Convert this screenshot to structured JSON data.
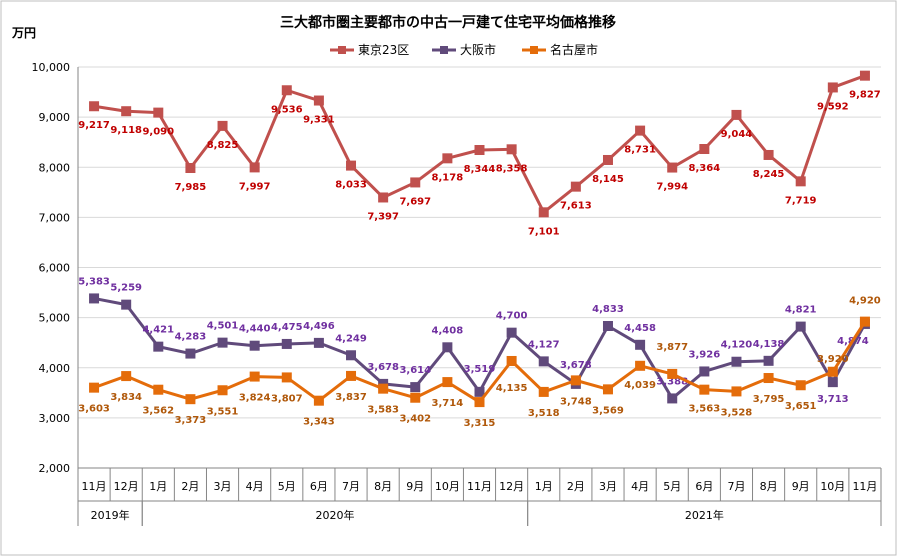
{
  "chart_data": {
    "type": "line",
    "title": "三大都市圏主要都市の中古一戸建て住宅平均価格推移",
    "ylabel": "万円",
    "ylim": [
      2000,
      10000
    ],
    "yticks": [
      "2,000",
      "3,000",
      "4,000",
      "5,000",
      "6,000",
      "7,000",
      "8,000",
      "9,000",
      "10,000"
    ],
    "ytick_values": [
      2000,
      3000,
      4000,
      5000,
      6000,
      7000,
      8000,
      9000,
      10000
    ],
    "categories": [
      "11月",
      "12月",
      "1月",
      "2月",
      "3月",
      "4月",
      "5月",
      "6月",
      "7月",
      "8月",
      "9月",
      "10月",
      "11月",
      "12月",
      "1月",
      "2月",
      "3月",
      "4月",
      "5月",
      "6月",
      "7月",
      "8月",
      "9月",
      "10月",
      "11月"
    ],
    "year_groups": [
      {
        "label": "2019年",
        "start": 0,
        "end": 1
      },
      {
        "label": "2020年",
        "start": 2,
        "end": 13
      },
      {
        "label": "2021年",
        "start": 14,
        "end": 24
      }
    ],
    "series": [
      {
        "name": "東京23区",
        "color": "#c0504d",
        "label_color": "#c00000",
        "marker": "square",
        "values": [
          9217,
          9118,
          9090,
          7985,
          8825,
          7997,
          9536,
          9331,
          8033,
          7397,
          7697,
          8178,
          8344,
          8358,
          7101,
          7613,
          8145,
          8731,
          7994,
          8364,
          9044,
          8245,
          7719,
          9592,
          9827
        ],
        "labels": [
          "9,217",
          "9,118",
          "9,090",
          "7,985",
          "8,825",
          "7,997",
          "9,536",
          "9,331",
          "8,033",
          "7,397",
          "7,697",
          "8,178",
          "8,344",
          "8,358",
          "7,101",
          "7,613",
          "8,145",
          "8,731",
          "7,994",
          "8,364",
          "9,044",
          "8,245",
          "7,719",
          "9,592",
          "9,827"
        ]
      },
      {
        "name": "大阪市",
        "color": "#604a7b",
        "label_color": "#7030a0",
        "marker": "square",
        "values": [
          5383,
          5259,
          4421,
          4283,
          4501,
          4440,
          4475,
          4496,
          4249,
          3678,
          3614,
          4408,
          3519,
          4700,
          4127,
          3678,
          4833,
          4458,
          3388,
          3926,
          4120,
          4138,
          4821,
          3713,
          4874
        ],
        "labels": [
          "5,383",
          "5,259",
          "4,421",
          "4,283",
          "4,501",
          "4,440",
          "4,475",
          "4,496",
          "4,249",
          "3,678",
          "3,614",
          "4,408",
          "3,519",
          "4,700",
          "4,127",
          "3,678",
          "4,833",
          "4,458",
          "3,388",
          "3,926",
          "4,120",
          "4,138",
          "4,821",
          "3,713",
          "4,874"
        ]
      },
      {
        "name": "名古屋市",
        "color": "#e46c0a",
        "label_color": "#b0580a",
        "marker": "square",
        "values": [
          3603,
          3834,
          3562,
          3373,
          3551,
          3824,
          3807,
          3343,
          3837,
          3583,
          3402,
          3714,
          3315,
          4135,
          3518,
          3748,
          3569,
          4039,
          3877,
          3563,
          3528,
          3795,
          3651,
          3920,
          4920
        ],
        "labels": [
          "3,603",
          "3,834",
          "3,562",
          "3,373",
          "3,551",
          "3,824",
          "3,807",
          "3,343",
          "3,837",
          "3,583",
          "3,402",
          "3,714",
          "3,315",
          "4,135",
          "3,518",
          "3,748",
          "3,569",
          "4,039",
          "3,877",
          "3,563",
          "3,528",
          "3,795",
          "3,651",
          "3,920",
          "4,920"
        ]
      }
    ]
  }
}
